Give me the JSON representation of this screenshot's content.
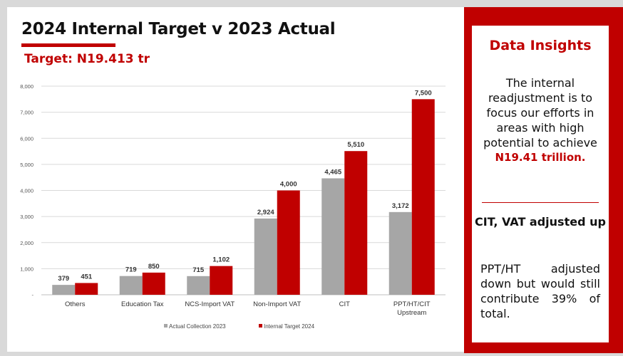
{
  "header": {
    "title": "2024 Internal Target v 2023 Actual",
    "target_label": "Target: N19.413 tr"
  },
  "insights": {
    "title": "Data Insights",
    "text": "The internal readjustment is to focus our efforts in areas with high potential to achieve",
    "highlight": "N19.41 trillion.",
    "subheading": "CIT, VAT adjusted up",
    "body": "PPT/HT adjusted down but would still contribute 39% of total."
  },
  "colors": {
    "accent": "#c00000",
    "actual": "#a6a6a6",
    "target": "#c00000"
  },
  "chart_data": {
    "type": "bar",
    "categories": [
      "Others",
      "Education Tax",
      "NCS-Import VAT",
      "Non-Import VAT",
      "CIT",
      [
        "PPT/HT/CIT",
        "Upstream"
      ]
    ],
    "series": [
      {
        "name": "Actual Collection 2023",
        "values": [
          379,
          719,
          715,
          2924,
          4465,
          3172
        ],
        "labels": [
          "379",
          "719",
          "715",
          "2,924",
          "4,465",
          "3,172"
        ]
      },
      {
        "name": "Internal Target 2024",
        "values": [
          451,
          850,
          1102,
          4000,
          5510,
          7500
        ],
        "labels": [
          "451",
          "850",
          "1,102",
          "4,000",
          "5,510",
          "7,500"
        ]
      }
    ],
    "ylim": [
      0,
      8000
    ],
    "yticks": [
      "-",
      "1,000",
      "2,000",
      "3,000",
      "4,000",
      "5,000",
      "6,000",
      "7,000",
      "8,000"
    ],
    "grid": true,
    "legend": "bottom"
  }
}
